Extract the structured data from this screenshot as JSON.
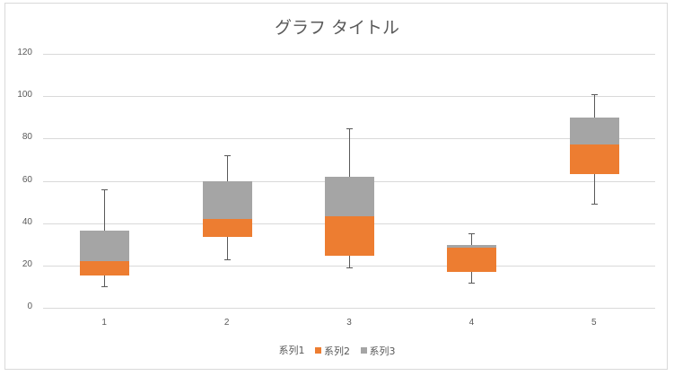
{
  "chart_data": {
    "type": "bar",
    "subtype": "stacked-column-boxplot",
    "title": "グラフ タイトル",
    "xlabel": "",
    "ylabel": "",
    "ylim": [
      0,
      120
    ],
    "yticks": [
      0,
      20,
      40,
      60,
      80,
      100,
      120
    ],
    "grid": true,
    "legend_position": "bottom",
    "categories": [
      "1",
      "2",
      "3",
      "4",
      "5"
    ],
    "series": [
      {
        "name": "系列1",
        "color": "none",
        "values": [
          15.3,
          33.5,
          24.6,
          17,
          63
        ]
      },
      {
        "name": "系列2",
        "color": "#ed7d31",
        "values": [
          6.9,
          8.5,
          18.7,
          11.5,
          14
        ]
      },
      {
        "name": "系列3",
        "color": "#a5a5a5",
        "values": [
          14.3,
          18,
          18.7,
          1.3,
          13
        ]
      }
    ],
    "whiskers": {
      "min": [
        10,
        23,
        19,
        12,
        49
      ],
      "max": [
        56,
        72,
        85,
        35,
        101
      ]
    }
  },
  "legend": [
    {
      "label": "系列1",
      "color": "none"
    },
    {
      "label": "系列2",
      "color": "#ed7d31"
    },
    {
      "label": "系列3",
      "color": "#a5a5a5"
    }
  ]
}
